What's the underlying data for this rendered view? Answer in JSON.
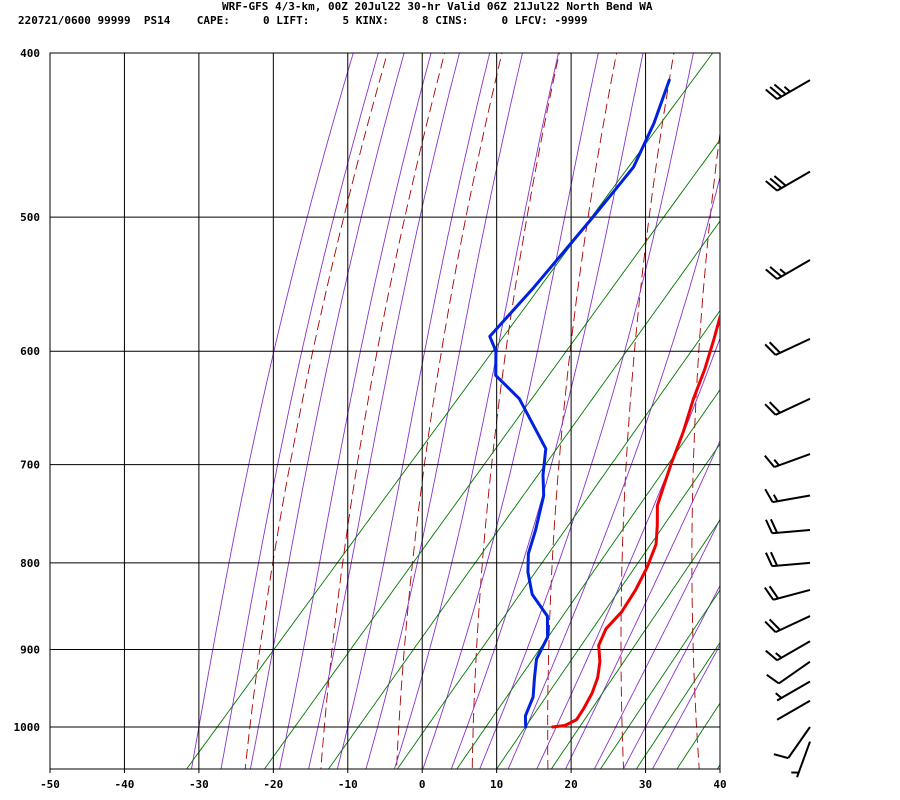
{
  "header": {
    "title": "WRF-GFS 4/3-km, 00Z 20Jul22 30-hr Valid 06Z 21Jul22 North Bend WA",
    "subtitle": "220721/0600 99999  PS14    CAPE:     0 LIFT:     5 KINX:     8 CINS:     0 LFCV: -9999"
  },
  "chart_data": {
    "type": "skew-t sounding",
    "xlim": [
      -50,
      40
    ],
    "ylim": [
      400,
      1040
    ],
    "y_scale": "log",
    "x_ticks": [
      -50,
      -40,
      -30,
      -20,
      -10,
      0,
      10,
      20,
      30,
      40
    ],
    "x_tick_labels": [
      "-50",
      "-40",
      "-30",
      "-20",
      "-10",
      "0",
      "10",
      "20",
      "30",
      "40"
    ],
    "y_ticks": [
      400,
      500,
      600,
      700,
      800,
      900,
      1000
    ],
    "y_tick_labels": [
      "400",
      "500",
      "600",
      "700",
      "800",
      "900",
      "1000"
    ],
    "grid": true,
    "colors": {
      "temperature": "#ee0000",
      "dewpoint": "#0022dd",
      "dry_adiabat": "#aa0000",
      "moist_adiabat": "#8833cc",
      "mixing_ratio": "#007700",
      "grid": "#000000"
    },
    "series": [
      {
        "key": "temperature",
        "points": [
          [
            1000,
            17.5
          ],
          [
            998,
            19.0
          ],
          [
            990,
            19.9
          ],
          [
            975,
            19.6
          ],
          [
            955,
            19.0
          ],
          [
            935,
            18.0
          ],
          [
            915,
            16.5
          ],
          [
            895,
            14.5
          ],
          [
            875,
            13.6
          ],
          [
            855,
            13.8
          ],
          [
            830,
            13.2
          ],
          [
            805,
            12.2
          ],
          [
            780,
            10.8
          ],
          [
            760,
            8.8
          ],
          [
            740,
            6.6
          ],
          [
            720,
            5.2
          ],
          [
            700,
            3.8
          ],
          [
            670,
            1.8
          ],
          [
            640,
            -0.6
          ],
          [
            615,
            -2.4
          ],
          [
            590,
            -4.6
          ],
          [
            560,
            -7.5
          ],
          [
            530,
            -10.0
          ],
          [
            500,
            -13.6
          ],
          [
            470,
            -17.6
          ],
          [
            440,
            -22.0
          ],
          [
            415,
            -26.4
          ]
        ]
      },
      {
        "key": "dewpoint",
        "points": [
          [
            1000,
            13.9
          ],
          [
            985,
            12.6
          ],
          [
            960,
            11.5
          ],
          [
            935,
            9.5
          ],
          [
            912,
            7.7
          ],
          [
            885,
            6.7
          ],
          [
            860,
            4.3
          ],
          [
            835,
            -0.2
          ],
          [
            810,
            -3.3
          ],
          [
            790,
            -5.3
          ],
          [
            765,
            -7.0
          ],
          [
            730,
            -9.8
          ],
          [
            710,
            -12.2
          ],
          [
            685,
            -14.8
          ],
          [
            665,
            -18.8
          ],
          [
            640,
            -24.0
          ],
          [
            620,
            -29.8
          ],
          [
            600,
            -32.5
          ],
          [
            588,
            -35.0
          ],
          [
            550,
            -34.6
          ],
          [
            520,
            -34.6
          ],
          [
            500,
            -34.6
          ],
          [
            480,
            -34.7
          ],
          [
            467,
            -34.8
          ],
          [
            440,
            -37.0
          ],
          [
            415,
            -39.8
          ]
        ]
      }
    ],
    "wind_barbs": [
      {
        "pressure": 415,
        "direction_deg": 240,
        "speed_kt": 35
      },
      {
        "pressure": 470,
        "direction_deg": 240,
        "speed_kt": 30
      },
      {
        "pressure": 530,
        "direction_deg": 240,
        "speed_kt": 25
      },
      {
        "pressure": 590,
        "direction_deg": 245,
        "speed_kt": 20
      },
      {
        "pressure": 640,
        "direction_deg": 245,
        "speed_kt": 20
      },
      {
        "pressure": 690,
        "direction_deg": 250,
        "speed_kt": 15
      },
      {
        "pressure": 730,
        "direction_deg": 260,
        "speed_kt": 15
      },
      {
        "pressure": 765,
        "direction_deg": 265,
        "speed_kt": 20
      },
      {
        "pressure": 800,
        "direction_deg": 265,
        "speed_kt": 20
      },
      {
        "pressure": 830,
        "direction_deg": 255,
        "speed_kt": 20
      },
      {
        "pressure": 860,
        "direction_deg": 245,
        "speed_kt": 20
      },
      {
        "pressure": 890,
        "direction_deg": 240,
        "speed_kt": 15
      },
      {
        "pressure": 915,
        "direction_deg": 235,
        "speed_kt": 10
      },
      {
        "pressure": 940,
        "direction_deg": 240,
        "speed_kt": 5
      },
      {
        "pressure": 965,
        "direction_deg": 240,
        "speed_kt": 0
      },
      {
        "pressure": 1000,
        "direction_deg": 215,
        "speed_kt": 10
      },
      {
        "pressure": 1020,
        "direction_deg": 200,
        "speed_kt": 5
      }
    ]
  }
}
